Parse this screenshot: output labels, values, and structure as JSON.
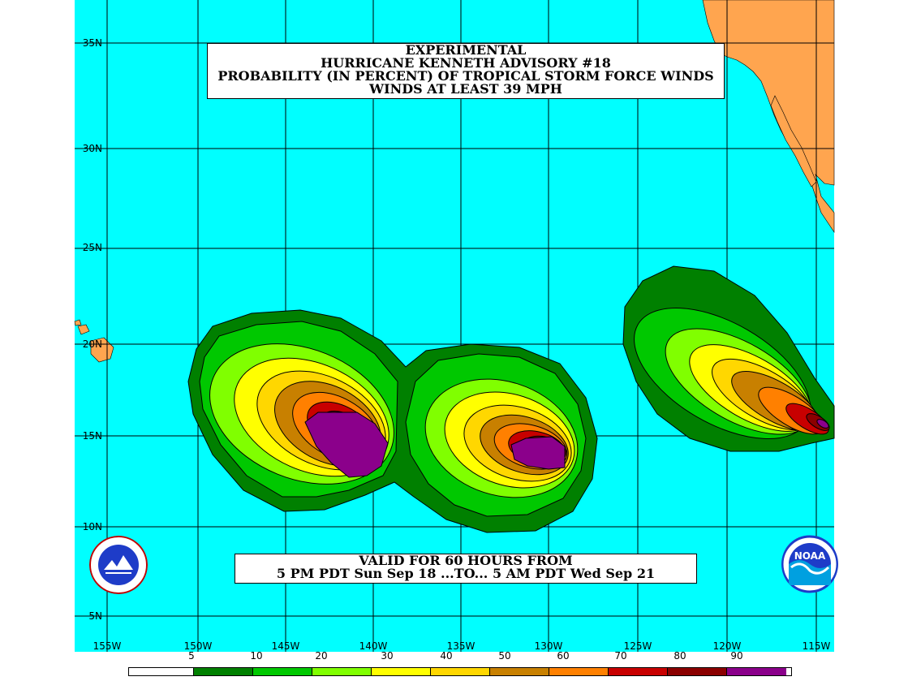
{
  "title": {
    "line1": "EXPERIMENTAL",
    "line2": "HURRICANE KENNETH ADVISORY #18",
    "line3": "PROBABILITY (IN PERCENT) OF TROPICAL STORM FORCE WINDS",
    "line4": "WINDS AT LEAST 39 MPH"
  },
  "valid": {
    "line1": "VALID FOR 60 HOURS FROM",
    "line2": "5 PM PDT Sun Sep 18 ...TO... 5 AM PDT Wed Sep 21"
  },
  "axes": {
    "lat_labels": [
      "35N",
      "30N",
      "25N",
      "20N",
      "15N",
      "10N",
      "5N"
    ],
    "lon_labels": [
      "155W",
      "150W",
      "145W",
      "140W",
      "135W",
      "130W",
      "125W",
      "120W",
      "115W"
    ]
  },
  "colors": {
    "ocean": "#00ffff",
    "land": "#ffa54f",
    "grid": "#000000",
    "bands": [
      "#ffffff",
      "#008000",
      "#00c800",
      "#80ff00",
      "#ffff00",
      "#ffd700",
      "#ffc000",
      "#c88000",
      "#ff8000",
      "#c80000",
      "#8b0000",
      "#8b008b"
    ]
  },
  "legend": {
    "scale_labels": [
      "5",
      "10",
      "20",
      "30",
      "40",
      "50",
      "60",
      "70",
      "80",
      "90"
    ]
  },
  "icons": [
    "nws-logo-icon",
    "noaa-logo-icon"
  ]
}
